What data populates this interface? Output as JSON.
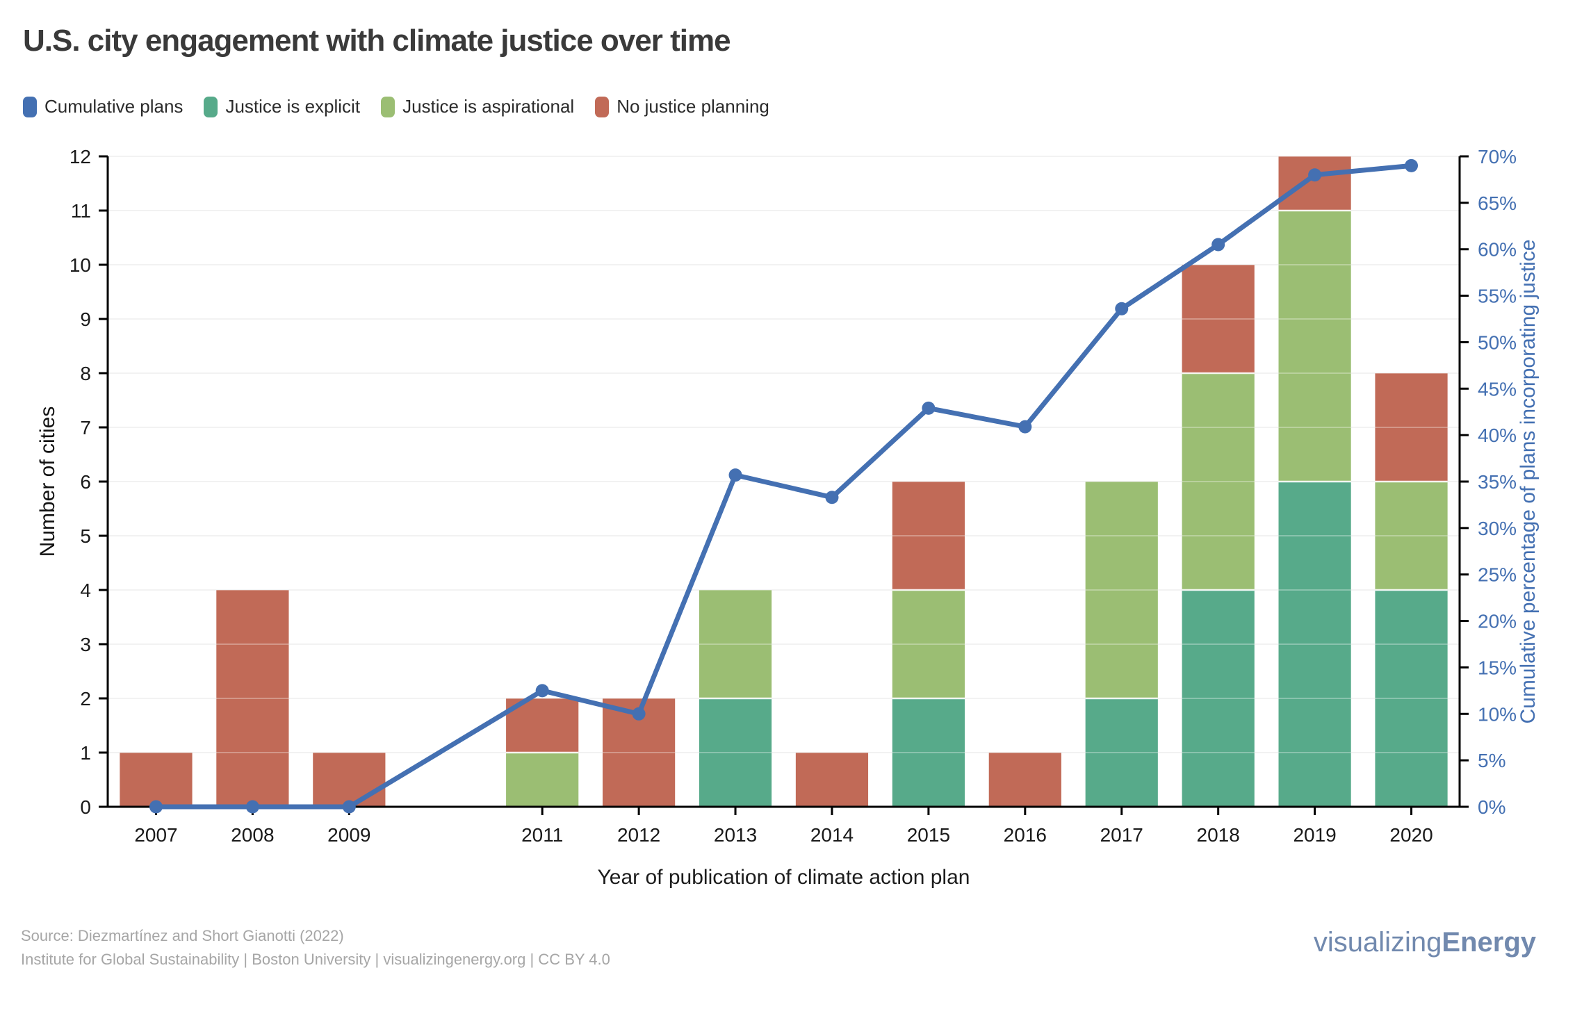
{
  "title": "U.S. city engagement with climate justice over time",
  "legend": {
    "items": [
      {
        "label": "Cumulative plans",
        "color": "#4470B2"
      },
      {
        "label": "Justice is explicit",
        "color": "#57AA8A"
      },
      {
        "label": "Justice is aspirational",
        "color": "#9BBE73"
      },
      {
        "label": "No justice planning",
        "color": "#C16A57"
      }
    ]
  },
  "chart_data": {
    "type": "bar",
    "subtype": "stacked-bars-with-line",
    "categories": [
      "2007",
      "2008",
      "2009",
      "",
      "2011",
      "2012",
      "2013",
      "2014",
      "2015",
      "2016",
      "2017",
      "2018",
      "2019",
      "2020"
    ],
    "series": [
      {
        "name": "Justice is explicit",
        "color": "#57AA8A",
        "values": [
          0,
          0,
          0,
          0,
          0,
          0,
          2,
          0,
          2,
          0,
          2,
          4,
          6,
          4
        ]
      },
      {
        "name": "Justice is aspirational",
        "color": "#9BBE73",
        "values": [
          0,
          0,
          0,
          0,
          1,
          0,
          2,
          0,
          2,
          0,
          4,
          4,
          5,
          2
        ]
      },
      {
        "name": "No justice planning",
        "color": "#C16A57",
        "values": [
          1,
          4,
          1,
          0,
          1,
          2,
          0,
          1,
          2,
          1,
          0,
          2,
          1,
          2
        ]
      }
    ],
    "line_series": {
      "name": "Cumulative plans",
      "color": "#4470B2",
      "axis": "right",
      "values": [
        0,
        0,
        0,
        null,
        12.5,
        10,
        35.7,
        33.3,
        42.9,
        40.9,
        53.6,
        60.5,
        68,
        69
      ]
    },
    "xlabel": "Year of publication of climate action plan",
    "left_axis": {
      "title": "Number of cities",
      "min": 0,
      "max": 12,
      "step": 1,
      "color": "#1a1a1a"
    },
    "right_axis": {
      "title": "Cumulative percentage of plans incorporating justice",
      "min": 0,
      "max": 70,
      "step": 5,
      "suffix": "%",
      "color": "#4470B2"
    },
    "grid": "horizontal",
    "grid_color": "#ECECEC",
    "legend_position": "top-left"
  },
  "footer": {
    "line1": "Source: Diezmartínez and Short Gianotti (2022)",
    "line2": "Institute for Global Sustainability | Boston University | visualizingenergy.org | CC BY 4.0"
  },
  "brand": {
    "light": "visualizing",
    "bold": "Energy"
  }
}
